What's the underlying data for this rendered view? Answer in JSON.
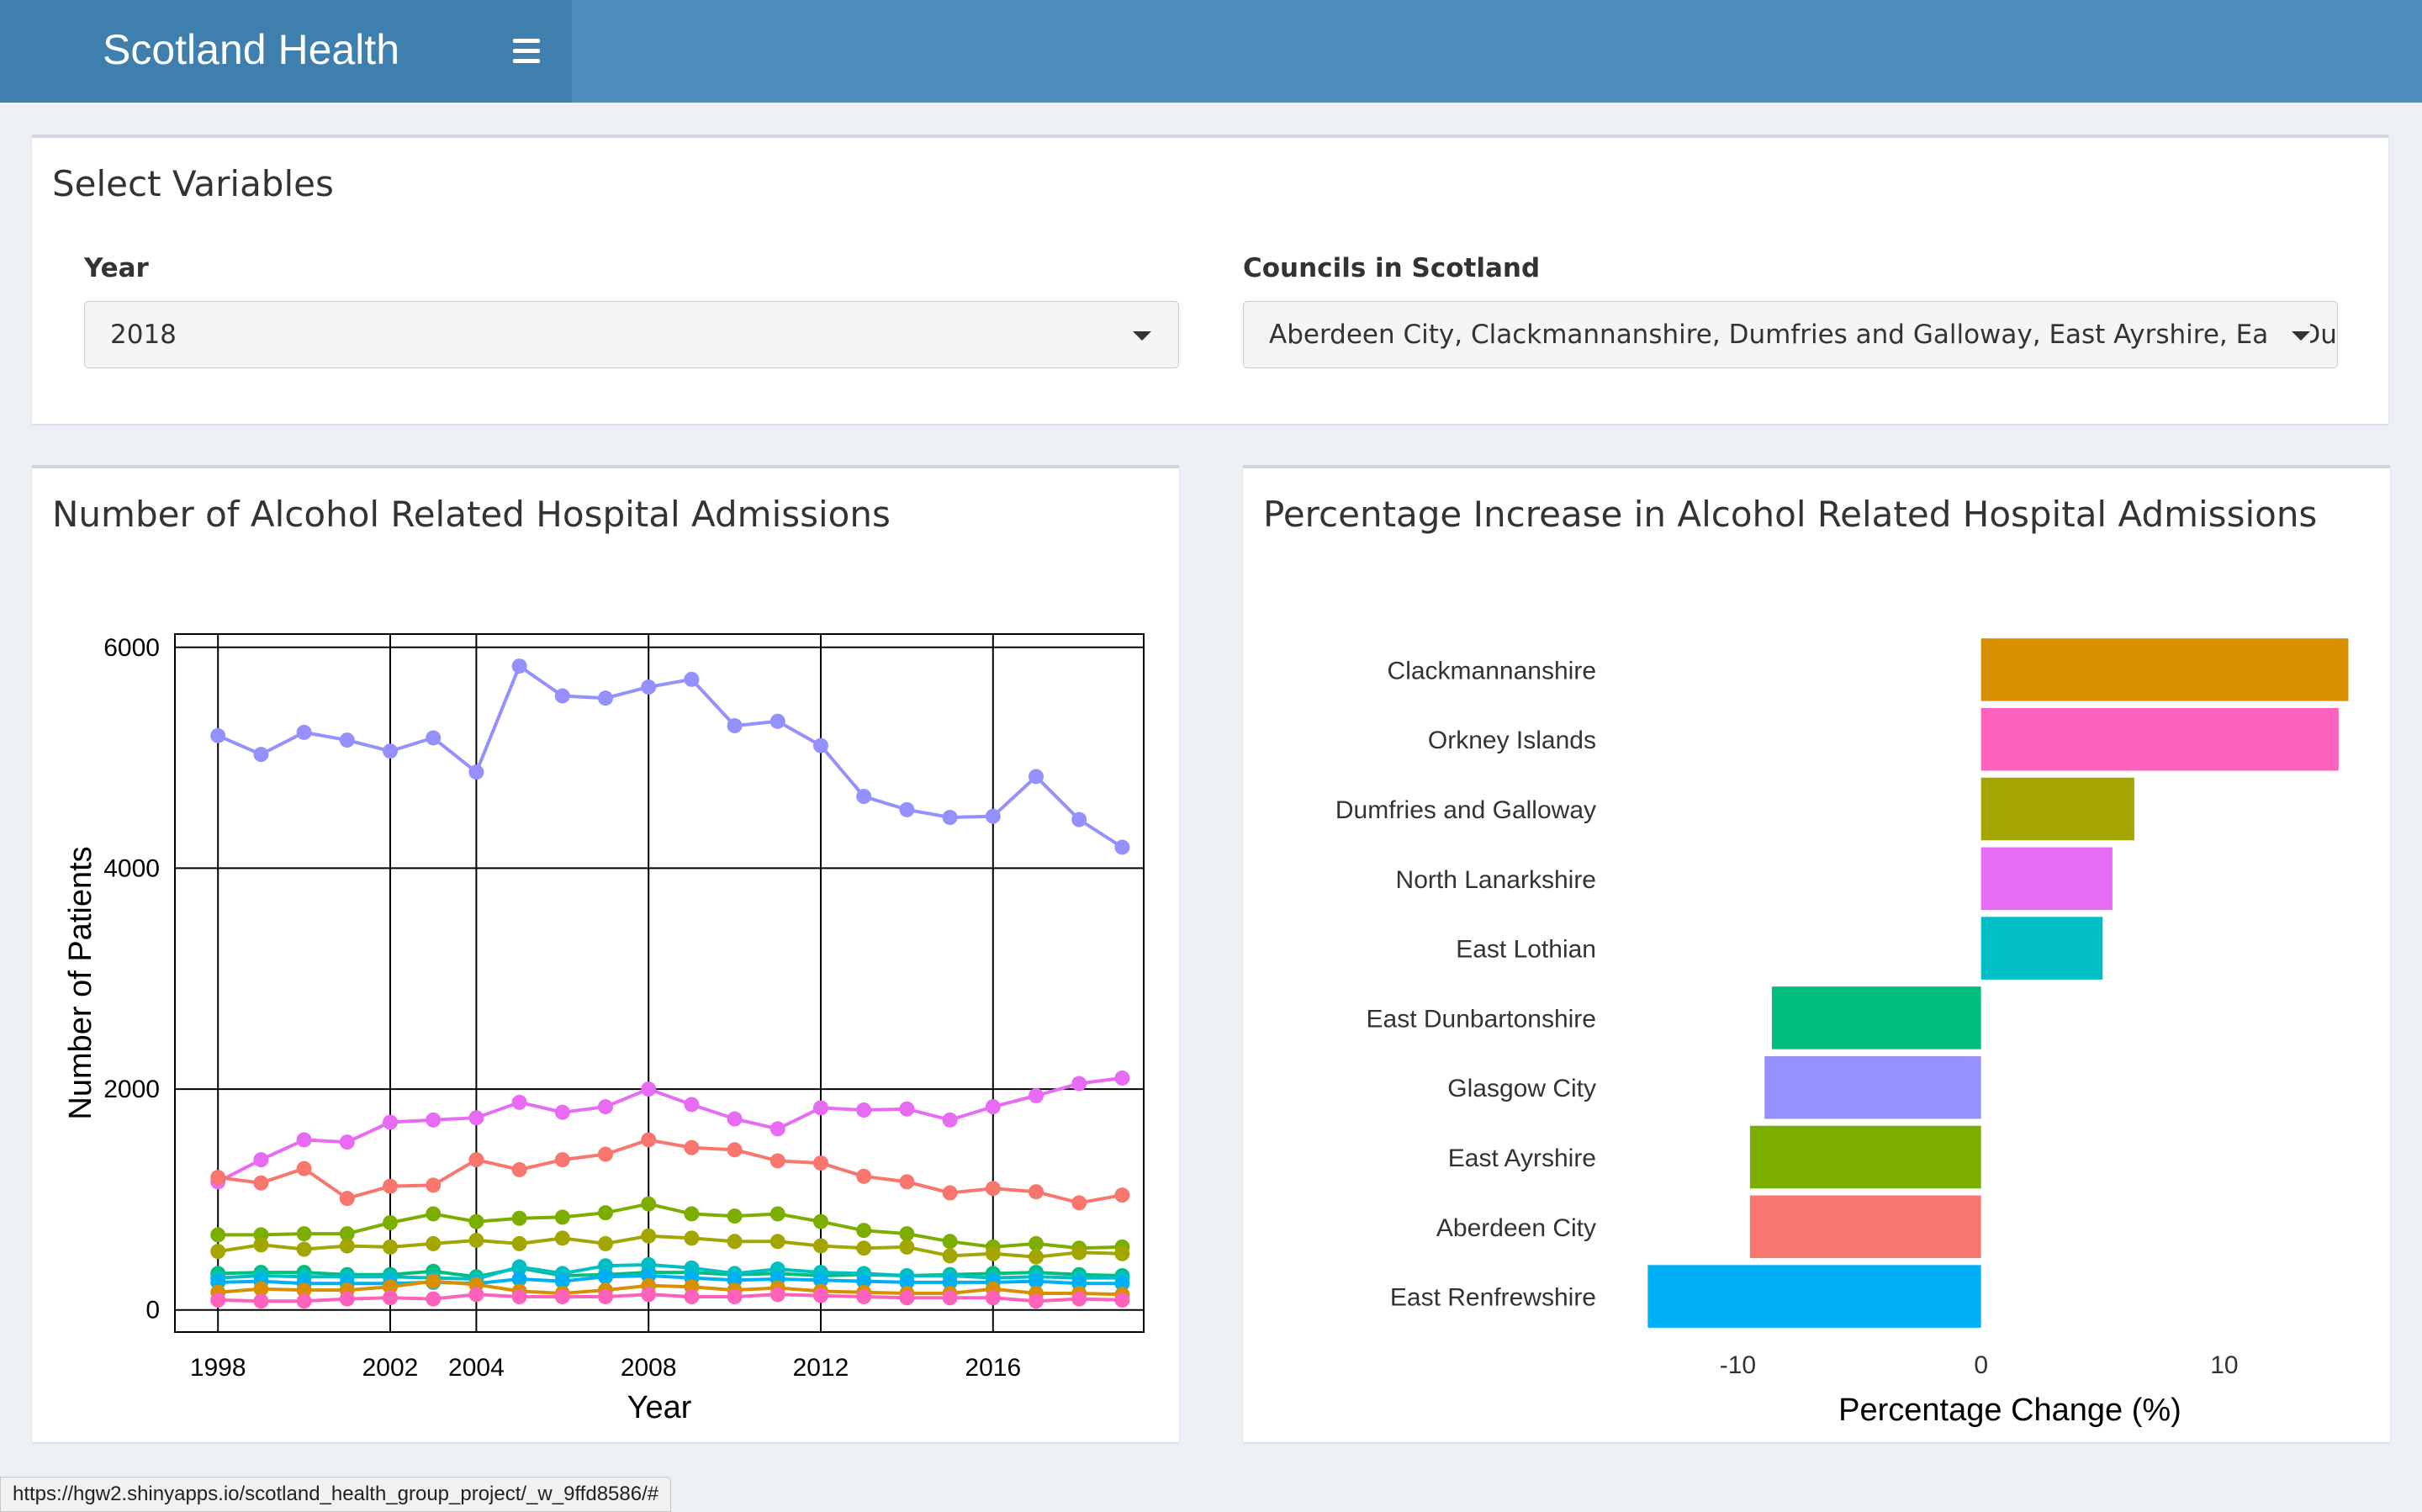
{
  "app": {
    "title": "Scotland Health"
  },
  "select_panel": {
    "title": "Select Variables",
    "year_label": "Year",
    "year_value": "2018",
    "councils_label": "Councils in Scotland",
    "councils_value": "Aberdeen City, Clackmannanshire, Dumfries and Galloway, East Ayrshire, East Dunbartonshire"
  },
  "line_panel": {
    "title": "Number of Alcohol Related Hospital Admissions"
  },
  "bar_panel": {
    "title": "Percentage Increase in Alcohol Related Hospital Admissions"
  },
  "status_url": "https://hgw2.shinyapps.io/scotland_health_group_project/_w_9ffd8586/#",
  "chart_data": [
    {
      "type": "line",
      "title": "",
      "xlabel": "Year",
      "ylabel": "Number of Patients",
      "xlim": [
        1997,
        2019.5
      ],
      "ylim": [
        -200,
        6120
      ],
      "xticks": [
        1998,
        2002,
        2004,
        2008,
        2012,
        2016
      ],
      "yticks": [
        0,
        2000,
        4000,
        6000
      ],
      "grid": true,
      "x": [
        1998,
        1999,
        2000,
        2001,
        2002,
        2003,
        2004,
        2005,
        2006,
        2007,
        2008,
        2009,
        2010,
        2011,
        2012,
        2013,
        2014,
        2015,
        2016,
        2017,
        2018,
        2019
      ],
      "series": [
        {
          "color": "#9590ff",
          "values": [
            5200,
            5030,
            5230,
            5160,
            5060,
            5180,
            4870,
            5830,
            5560,
            5540,
            5640,
            5710,
            5290,
            5330,
            5110,
            4650,
            4530,
            4460,
            4470,
            4830,
            4440,
            4190
          ]
        },
        {
          "color": "#e76bf3",
          "values": [
            1160,
            1360,
            1540,
            1520,
            1700,
            1720,
            1740,
            1880,
            1790,
            1840,
            2000,
            1860,
            1730,
            1640,
            1830,
            1810,
            1820,
            1720,
            1840,
            1940,
            2050,
            2100
          ]
        },
        {
          "color": "#f8766d",
          "values": [
            1200,
            1150,
            1280,
            1010,
            1120,
            1130,
            1360,
            1270,
            1360,
            1410,
            1540,
            1470,
            1450,
            1350,
            1330,
            1210,
            1160,
            1060,
            1100,
            1070,
            970,
            1040
          ]
        },
        {
          "color": "#7cae00",
          "values": [
            680,
            680,
            690,
            690,
            790,
            870,
            800,
            830,
            840,
            880,
            960,
            870,
            850,
            870,
            800,
            720,
            690,
            620,
            570,
            600,
            560,
            570
          ]
        },
        {
          "color": "#a3a500",
          "values": [
            530,
            590,
            550,
            580,
            570,
            600,
            630,
            600,
            650,
            600,
            670,
            650,
            620,
            620,
            580,
            560,
            570,
            490,
            510,
            480,
            520,
            510
          ]
        },
        {
          "color": "#00bf7d",
          "values": [
            330,
            340,
            340,
            320,
            320,
            350,
            300,
            380,
            310,
            320,
            340,
            340,
            320,
            330,
            310,
            320,
            310,
            320,
            330,
            340,
            320,
            310
          ]
        },
        {
          "color": "#00bfc4",
          "values": [
            290,
            310,
            300,
            300,
            300,
            290,
            280,
            390,
            330,
            400,
            410,
            380,
            330,
            370,
            340,
            330,
            310,
            310,
            290,
            300,
            290,
            290
          ]
        },
        {
          "color": "#00b0f6",
          "values": [
            250,
            260,
            240,
            240,
            240,
            250,
            240,
            280,
            260,
            300,
            310,
            290,
            270,
            280,
            270,
            260,
            250,
            250,
            250,
            260,
            240,
            240
          ]
        },
        {
          "color": "#d89000",
          "values": [
            160,
            190,
            180,
            180,
            210,
            260,
            230,
            170,
            150,
            180,
            220,
            210,
            180,
            200,
            170,
            160,
            150,
            150,
            190,
            150,
            150,
            140
          ]
        },
        {
          "color": "#ff62bc",
          "values": [
            90,
            80,
            80,
            100,
            110,
            100,
            140,
            120,
            120,
            120,
            140,
            120,
            120,
            140,
            130,
            120,
            110,
            110,
            110,
            80,
            100,
            90
          ]
        }
      ]
    },
    {
      "type": "bar",
      "orientation": "horizontal",
      "title": "",
      "xlabel": "Percentage Change (%)",
      "ylabel": "",
      "xlim": [
        -15.2,
        15.5
      ],
      "xticks": [
        -10,
        0,
        10
      ],
      "categories": [
        "Clackmannanshire",
        "Orkney Islands",
        "Dumfries and Galloway",
        "North Lanarkshire",
        "East Lothian",
        "East Dunbartonshire",
        "Glasgow City",
        "East Ayrshire",
        "Aberdeen City",
        "East Renfrewshire"
      ],
      "values": [
        15.1,
        14.7,
        6.3,
        5.4,
        5.0,
        -8.6,
        -8.9,
        -9.5,
        -9.5,
        -13.7
      ],
      "colors": [
        "#d89000",
        "#ff62bc",
        "#a3a500",
        "#e76bf3",
        "#00bfc4",
        "#00bf7d",
        "#9590ff",
        "#7cae00",
        "#f8766d",
        "#00b0f6"
      ]
    }
  ]
}
